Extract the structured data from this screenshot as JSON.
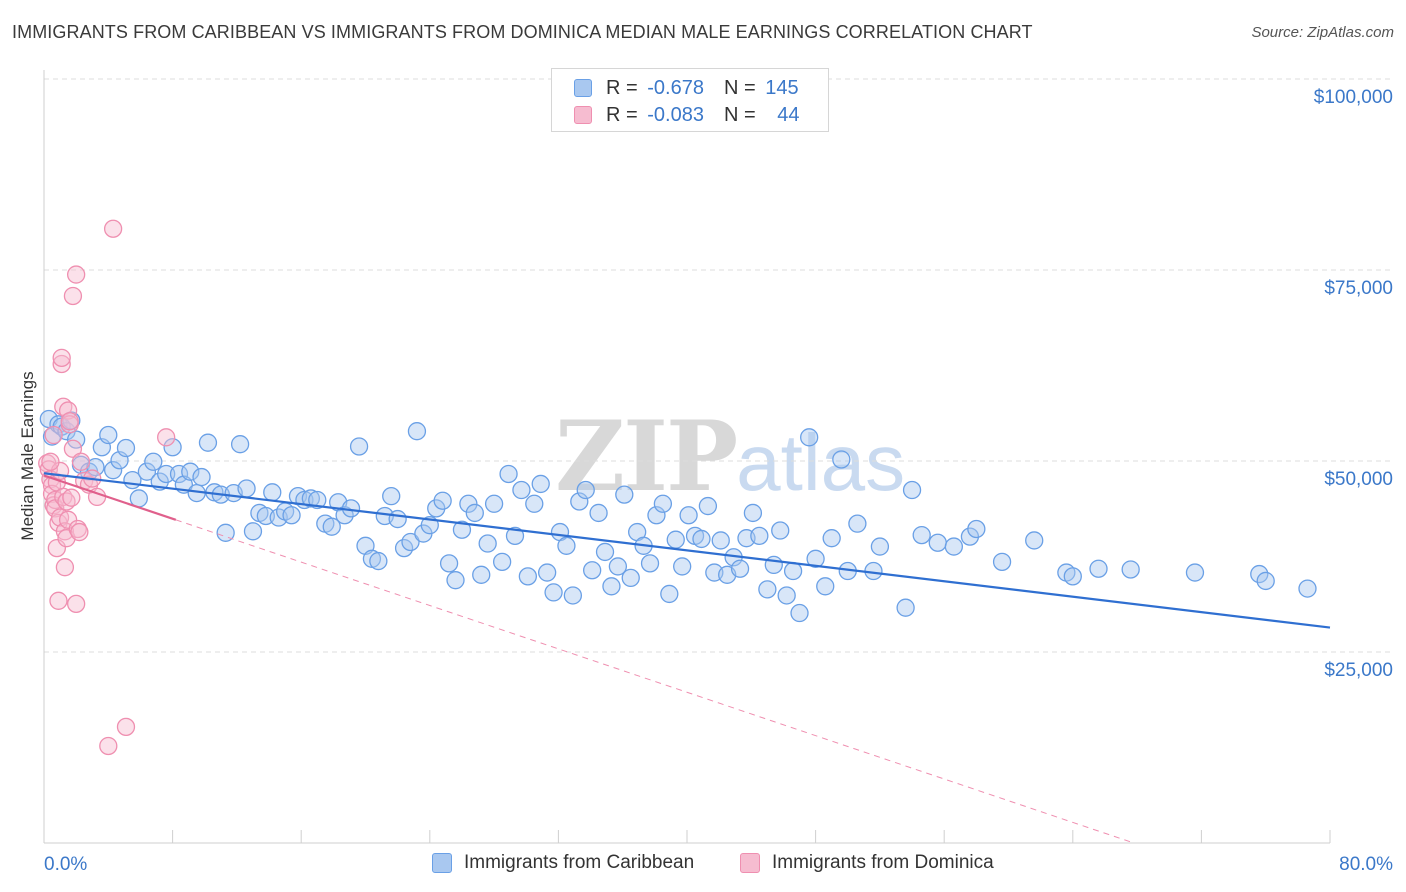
{
  "header": {
    "title": "IMMIGRANTS FROM CARIBBEAN VS IMMIGRANTS FROM DOMINICA MEDIAN MALE EARNINGS CORRELATION CHART",
    "source": "Source: ZipAtlas.com"
  },
  "watermark": {
    "zip": "ZIP",
    "atlas": "atlas"
  },
  "legend": {
    "rows": [
      {
        "r_label": "R = ",
        "r_value": "-0.678",
        "n_label": "N = ",
        "n_value": "145"
      },
      {
        "r_label": "R = ",
        "r_value": "-0.083",
        "n_label": "N = ",
        "n_value": "44"
      }
    ]
  },
  "colors": {
    "caribbean": "#6aa0e6",
    "caribbean_fill": "#a9c8f0",
    "caribbean_line": "#2f6fd1",
    "dominica": "#ef8fb0",
    "dominica_fill": "#f6bcd0",
    "dominica_line": "#e0608c",
    "axis_text": "#3b78c9",
    "grid": "#dddddd"
  },
  "chart_data": {
    "type": "scatter",
    "title": "IMMIGRANTS FROM CARIBBEAN VS IMMIGRANTS FROM DOMINICA MEDIAN MALE EARNINGS CORRELATION CHART",
    "xlabel": "",
    "ylabel": "Median Male Earnings",
    "xlim": [
      0,
      80
    ],
    "ylim": [
      0,
      105000
    ],
    "x_tick_labels": [
      "0.0%",
      "80.0%"
    ],
    "y_ticks": [
      25000,
      50000,
      75000,
      100000
    ],
    "y_tick_labels": [
      "$25,000",
      "$50,000",
      "$75,000",
      "$100,000"
    ],
    "grid": true,
    "legend_position": "top-center",
    "series": [
      {
        "name": "Immigrants from Caribbean",
        "r": -0.678,
        "n": 145,
        "trend": {
          "x0": 0,
          "y0": 48400,
          "x1": 80,
          "y1": 28200,
          "style": "solid"
        },
        "points": [
          [
            0.3,
            55500
          ],
          [
            0.5,
            53200
          ],
          [
            0.9,
            54800
          ],
          [
            1.1,
            54500
          ],
          [
            1.4,
            53900
          ],
          [
            1.7,
            55300
          ],
          [
            2.0,
            52800
          ],
          [
            2.3,
            49500
          ],
          [
            2.8,
            48600
          ],
          [
            3.2,
            49200
          ],
          [
            3.6,
            51800
          ],
          [
            4.0,
            53400
          ],
          [
            4.3,
            48800
          ],
          [
            4.7,
            50100
          ],
          [
            5.1,
            51700
          ],
          [
            5.5,
            47500
          ],
          [
            5.9,
            45100
          ],
          [
            6.4,
            48600
          ],
          [
            6.8,
            49900
          ],
          [
            7.2,
            47300
          ],
          [
            7.6,
            48300
          ],
          [
            8.0,
            51800
          ],
          [
            8.4,
            48300
          ],
          [
            8.7,
            46900
          ],
          [
            9.1,
            48600
          ],
          [
            9.5,
            45800
          ],
          [
            9.8,
            47900
          ],
          [
            10.2,
            52400
          ],
          [
            10.6,
            45900
          ],
          [
            11.0,
            45600
          ],
          [
            11.3,
            40600
          ],
          [
            11.8,
            45800
          ],
          [
            12.2,
            52200
          ],
          [
            12.6,
            46400
          ],
          [
            13.0,
            40800
          ],
          [
            13.4,
            43200
          ],
          [
            13.8,
            42800
          ],
          [
            14.2,
            45900
          ],
          [
            14.6,
            42600
          ],
          [
            15.0,
            43400
          ],
          [
            15.4,
            42900
          ],
          [
            15.8,
            45400
          ],
          [
            16.2,
            44900
          ],
          [
            16.6,
            45100
          ],
          [
            17.0,
            44900
          ],
          [
            17.5,
            41800
          ],
          [
            17.9,
            41400
          ],
          [
            18.3,
            44600
          ],
          [
            18.7,
            42900
          ],
          [
            19.1,
            43800
          ],
          [
            19.6,
            51900
          ],
          [
            20.0,
            38900
          ],
          [
            20.4,
            37200
          ],
          [
            20.8,
            36900
          ],
          [
            21.2,
            42800
          ],
          [
            21.6,
            45400
          ],
          [
            22.0,
            42400
          ],
          [
            22.4,
            38600
          ],
          [
            22.8,
            39400
          ],
          [
            23.2,
            53900
          ],
          [
            23.6,
            40500
          ],
          [
            24.0,
            41600
          ],
          [
            24.4,
            43800
          ],
          [
            24.8,
            44800
          ],
          [
            25.2,
            36600
          ],
          [
            25.6,
            34400
          ],
          [
            26.0,
            41000
          ],
          [
            26.4,
            44400
          ],
          [
            26.8,
            43200
          ],
          [
            27.2,
            35100
          ],
          [
            27.6,
            39200
          ],
          [
            28.0,
            44400
          ],
          [
            28.5,
            36800
          ],
          [
            28.9,
            48300
          ],
          [
            29.3,
            40200
          ],
          [
            29.7,
            46200
          ],
          [
            30.1,
            34900
          ],
          [
            30.5,
            44400
          ],
          [
            30.9,
            47000
          ],
          [
            31.3,
            35400
          ],
          [
            31.7,
            32800
          ],
          [
            32.1,
            40700
          ],
          [
            32.5,
            38900
          ],
          [
            32.9,
            32400
          ],
          [
            33.3,
            44700
          ],
          [
            33.7,
            46200
          ],
          [
            34.1,
            35700
          ],
          [
            34.5,
            43200
          ],
          [
            34.9,
            38100
          ],
          [
            35.3,
            33600
          ],
          [
            35.7,
            36200
          ],
          [
            36.1,
            45600
          ],
          [
            36.5,
            34700
          ],
          [
            36.9,
            40700
          ],
          [
            37.3,
            38900
          ],
          [
            37.7,
            36600
          ],
          [
            38.1,
            42900
          ],
          [
            38.5,
            44400
          ],
          [
            38.9,
            32600
          ],
          [
            39.3,
            39700
          ],
          [
            39.7,
            36200
          ],
          [
            40.1,
            42900
          ],
          [
            40.5,
            40200
          ],
          [
            40.9,
            39800
          ],
          [
            41.3,
            44100
          ],
          [
            41.7,
            35400
          ],
          [
            42.1,
            39600
          ],
          [
            42.5,
            35100
          ],
          [
            42.9,
            37400
          ],
          [
            43.3,
            35900
          ],
          [
            43.7,
            39900
          ],
          [
            44.1,
            43200
          ],
          [
            44.5,
            40200
          ],
          [
            45.0,
            33200
          ],
          [
            45.4,
            36400
          ],
          [
            45.8,
            40900
          ],
          [
            46.2,
            32400
          ],
          [
            46.6,
            35600
          ],
          [
            47.0,
            30100
          ],
          [
            47.6,
            53100
          ],
          [
            48.0,
            37200
          ],
          [
            48.6,
            33600
          ],
          [
            49.0,
            39900
          ],
          [
            49.6,
            50200
          ],
          [
            50.0,
            35600
          ],
          [
            50.6,
            41800
          ],
          [
            51.6,
            35600
          ],
          [
            52.0,
            38800
          ],
          [
            53.6,
            30800
          ],
          [
            54.0,
            46200
          ],
          [
            54.6,
            40300
          ],
          [
            55.6,
            39300
          ],
          [
            56.6,
            38800
          ],
          [
            57.6,
            40100
          ],
          [
            58.0,
            41100
          ],
          [
            59.6,
            36800
          ],
          [
            61.6,
            39600
          ],
          [
            63.6,
            35400
          ],
          [
            64.0,
            34900
          ],
          [
            65.6,
            35900
          ],
          [
            67.6,
            35800
          ],
          [
            71.6,
            35400
          ],
          [
            75.6,
            35200
          ],
          [
            76.0,
            34300
          ],
          [
            78.6,
            33300
          ]
        ]
      },
      {
        "name": "Immigrants from Dominica",
        "r": -0.083,
        "n": 44,
        "trend": {
          "x0": 0,
          "y0": 48100,
          "x1": 8.2,
          "y1": 42300,
          "style": "solid"
        },
        "trend_extended": {
          "x0": 8.2,
          "y0": 42300,
          "x1": 67.8,
          "y1": 0,
          "style": "dashed"
        },
        "points": [
          [
            0.2,
            49700
          ],
          [
            0.3,
            48900
          ],
          [
            0.4,
            47600
          ],
          [
            0.5,
            46800
          ],
          [
            0.5,
            45700
          ],
          [
            0.6,
            53400
          ],
          [
            0.6,
            44200
          ],
          [
            0.7,
            44900
          ],
          [
            0.7,
            43800
          ],
          [
            0.8,
            47200
          ],
          [
            0.8,
            38600
          ],
          [
            0.9,
            41900
          ],
          [
            0.9,
            31700
          ],
          [
            1.0,
            48700
          ],
          [
            1.0,
            42600
          ],
          [
            1.1,
            62700
          ],
          [
            1.1,
            63500
          ],
          [
            1.2,
            57100
          ],
          [
            1.2,
            45300
          ],
          [
            1.3,
            40800
          ],
          [
            1.3,
            36100
          ],
          [
            1.4,
            39900
          ],
          [
            1.4,
            44700
          ],
          [
            1.5,
            56600
          ],
          [
            1.5,
            42300
          ],
          [
            1.6,
            54800
          ],
          [
            1.7,
            45200
          ],
          [
            1.8,
            51600
          ],
          [
            1.8,
            71600
          ],
          [
            2.0,
            74400
          ],
          [
            2.0,
            31300
          ],
          [
            2.1,
            41100
          ],
          [
            2.2,
            40700
          ],
          [
            2.3,
            49900
          ],
          [
            2.5,
            47400
          ],
          [
            2.8,
            46900
          ],
          [
            3.0,
            47700
          ],
          [
            3.3,
            45300
          ],
          [
            4.0,
            12700
          ],
          [
            4.3,
            80400
          ],
          [
            5.1,
            15200
          ],
          [
            7.6,
            53100
          ],
          [
            1.6,
            55200
          ],
          [
            0.4,
            49900
          ]
        ]
      }
    ]
  }
}
